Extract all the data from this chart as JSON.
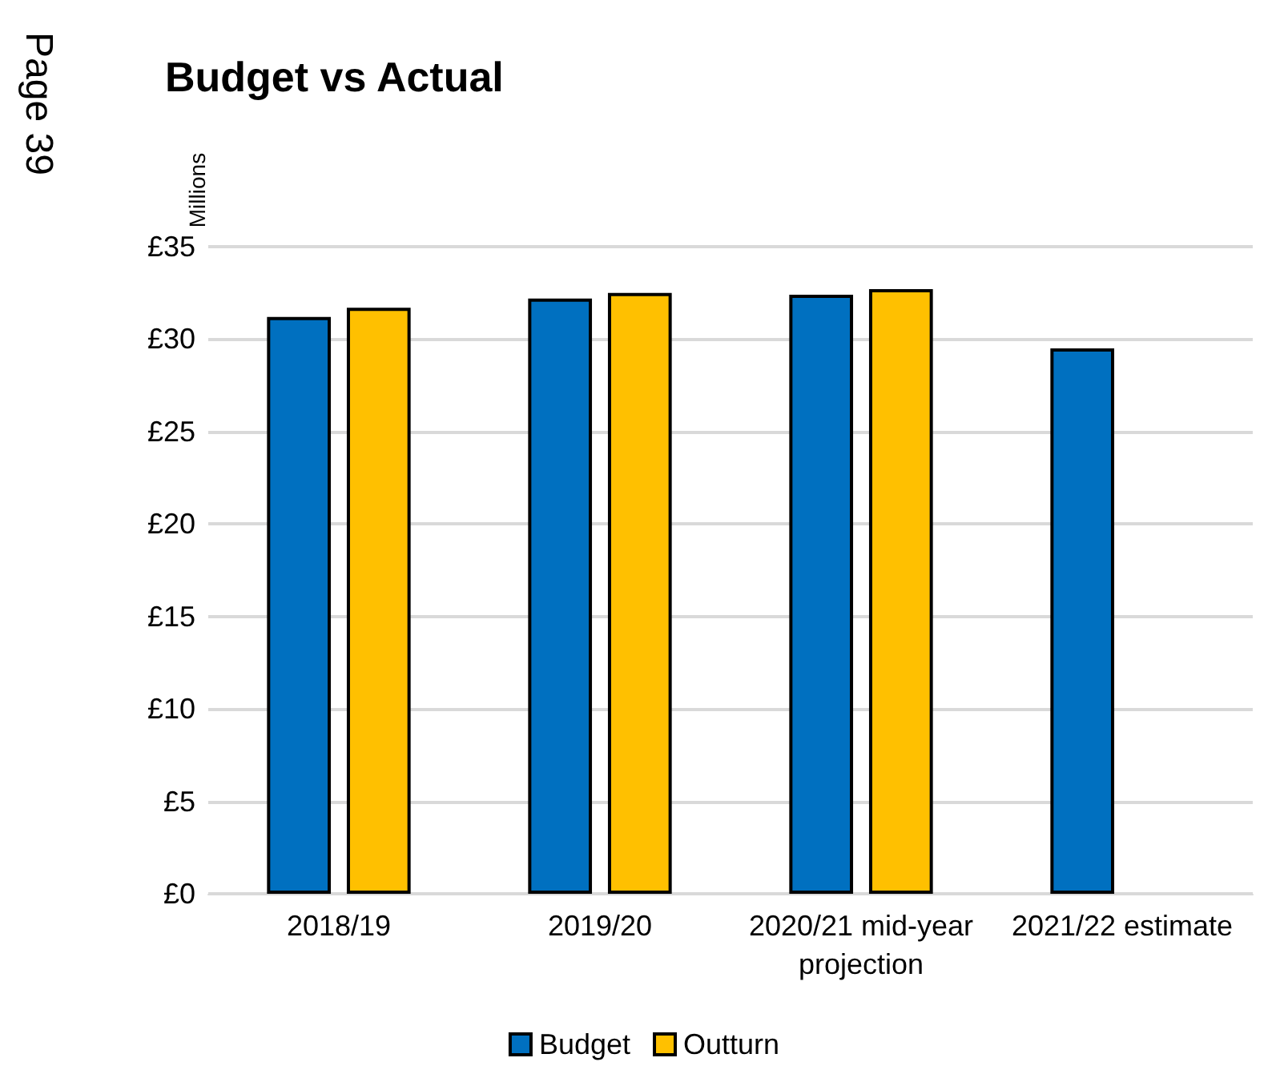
{
  "chart_data": {
    "type": "bar",
    "title": "Budget vs Actual",
    "ylabel": "Millions",
    "annotations": [
      "Page 39"
    ],
    "categories": [
      "2018/19",
      "2019/20",
      "2020/21 mid-year projection",
      "2021/22 estimate"
    ],
    "series": [
      {
        "name": "Budget",
        "color": "#0070c0",
        "values": [
          31.2,
          32.2,
          32.4,
          29.5
        ]
      },
      {
        "name": "Outturn",
        "color": "#ffc000",
        "values": [
          31.7,
          32.5,
          32.7,
          null
        ]
      }
    ],
    "ylim": [
      0,
      35
    ],
    "yticks": [
      {
        "value": 0,
        "label": "£0"
      },
      {
        "value": 5,
        "label": "£5"
      },
      {
        "value": 10,
        "label": "£10"
      },
      {
        "value": 15,
        "label": "£15"
      },
      {
        "value": 20,
        "label": "£20"
      },
      {
        "value": 25,
        "label": "£25"
      },
      {
        "value": 30,
        "label": "£30"
      },
      {
        "value": 35,
        "label": "£35"
      }
    ],
    "grid": "y",
    "legend": "bottom"
  }
}
